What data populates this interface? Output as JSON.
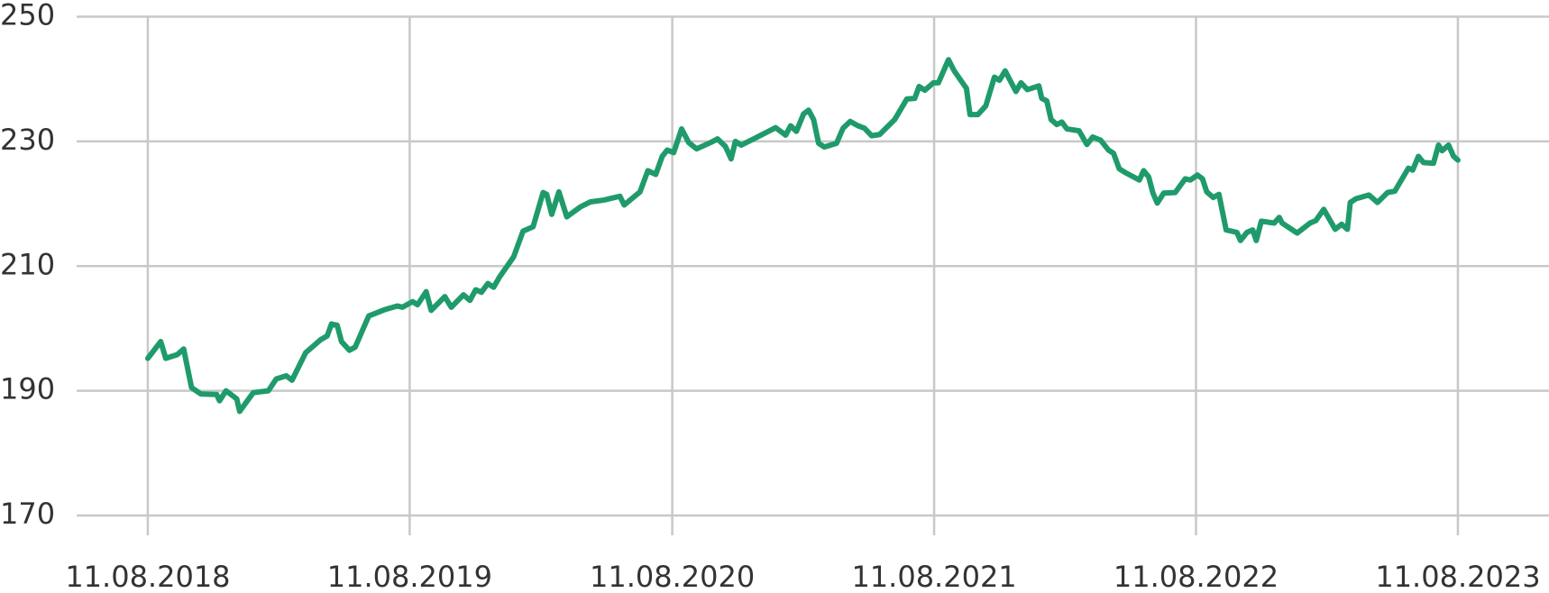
{
  "chart_data": {
    "type": "line",
    "x": [
      "11.08.2018",
      "29.08.2018",
      "05.09.2018",
      "21.09.2018",
      "30.09.2018",
      "11.10.2018",
      "24.10.2018",
      "15.11.2018",
      "19.11.2018",
      "28.11.2018",
      "13.12.2018",
      "17.12.2018",
      "05.01.2019",
      "26.01.2019",
      "06.02.2019",
      "20.02.2019",
      "28.02.2019",
      "19.03.2019",
      "09.04.2019",
      "18.04.2019",
      "24.04.2019",
      "02.05.2019",
      "08.05.2019",
      "19.05.2019",
      "27.05.2019",
      "15.06.2019",
      "07.07.2019",
      "25.07.2019",
      "01.08.2019",
      "15.08.2019",
      "22.08.2019",
      "03.09.2019",
      "10.09.2019",
      "29.09.2019",
      "08.10.2019",
      "25.10.2019",
      "03.11.2019",
      "11.11.2019",
      "19.11.2019",
      "28.11.2019",
      "06.12.2019",
      "14.12.2019",
      "03.01.2020",
      "16.01.2020",
      "30.01.2020",
      "13.02.2020",
      "18.02.2020",
      "25.02.2020",
      "06.03.2020",
      "17.03.2020",
      "05.04.2020",
      "19.04.2020",
      "08.05.2020",
      "30.05.2020",
      "05.06.2020",
      "27.06.2020",
      "08.07.2020",
      "19.07.2020",
      "28.07.2020",
      "04.08.2020",
      "13.08.2020",
      "24.08.2020",
      "03.09.2020",
      "14.09.2020",
      "05.10.2020",
      "13.10.2020",
      "24.10.2020",
      "01.11.2020",
      "07.11.2020",
      "15.11.2020",
      "06.12.2020",
      "02.01.2021",
      "16.01.2021",
      "23.01.2021",
      "31.01.2021",
      "10.02.2021",
      "17.02.2021",
      "24.02.2021",
      "03.03.2021",
      "11.03.2021",
      "28.03.2021",
      "06.04.2021",
      "16.04.2021",
      "27.04.2021",
      "06.05.2021",
      "16.05.2021",
      "27.05.2021",
      "17.06.2021",
      "04.07.2021",
      "15.07.2021",
      "21.07.2021",
      "29.07.2021",
      "10.08.2021",
      "17.08.2021",
      "31.08.2021",
      "08.09.2021",
      "25.09.2021",
      "30.09.2021",
      "11.10.2021",
      "22.10.2021",
      "03.11.2021",
      "10.11.2021",
      "18.11.2021",
      "03.12.2021",
      "10.12.2021",
      "19.12.2021",
      "04.01.2022",
      "08.01.2022",
      "15.01.2022",
      "21.01.2022",
      "29.01.2022",
      "05.02.2022",
      "12.02.2022",
      "01.03.2022",
      "12.03.2022",
      "20.03.2022",
      "31.03.2022",
      "11.04.2022",
      "18.04.2022",
      "26.04.2022",
      "06.05.2022",
      "24.05.2022",
      "30.05.2022",
      "06.06.2022",
      "12.06.2022",
      "18.06.2022",
      "27.06.2022",
      "13.07.2022",
      "27.07.2022",
      "03.08.2022",
      "13.08.2022",
      "20.08.2022",
      "26.08.2022",
      "04.09.2022",
      "12.09.2022",
      "22.09.2022",
      "07.10.2022",
      "12.10.2022",
      "21.10.2022",
      "29.10.2022",
      "03.11.2022",
      "10.11.2022",
      "28.11.2022",
      "05.12.2022",
      "09.12.2022",
      "30.12.2022",
      "17.01.2023",
      "25.01.2023",
      "05.02.2023",
      "21.02.2023",
      "02.03.2023",
      "10.03.2023",
      "14.03.2023",
      "22.03.2023",
      "09.04.2023",
      "21.04.2023",
      "05.05.2023",
      "15.05.2023",
      "03.06.2023",
      "09.06.2023",
      "17.06.2023",
      "24.06.2023",
      "08.07.2023",
      "15.07.2023",
      "20.07.2023",
      "29.07.2023",
      "05.08.2023",
      "11.08.2023"
    ],
    "series": [
      {
        "color": "#1f9b6b",
        "values": [
          195.2,
          197.9,
          195.2,
          195.8,
          196.7,
          190.5,
          189.5,
          189.4,
          188.4,
          190.0,
          188.7,
          186.7,
          189.7,
          190.0,
          191.9,
          192.4,
          191.7,
          196.1,
          198.2,
          198.8,
          200.7,
          200.5,
          197.9,
          196.5,
          197.0,
          202.0,
          203.0,
          203.6,
          203.4,
          204.3,
          203.8,
          205.9,
          202.9,
          205.1,
          203.4,
          205.4,
          204.5,
          206.2,
          205.8,
          207.2,
          206.6,
          208.2,
          211.5,
          215.6,
          216.3,
          221.8,
          221.5,
          218.3,
          221.9,
          217.9,
          219.5,
          220.3,
          220.6,
          221.2,
          219.8,
          221.9,
          225.3,
          224.7,
          227.6,
          228.6,
          228.2,
          232.0,
          229.8,
          228.8,
          229.9,
          230.4,
          229.2,
          227.2,
          230.0,
          229.4,
          230.6,
          232.2,
          231.0,
          232.5,
          231.6,
          234.4,
          235.0,
          233.5,
          229.7,
          229.1,
          229.7,
          232.1,
          233.2,
          232.5,
          232.1,
          230.9,
          231.1,
          233.5,
          236.8,
          236.9,
          238.8,
          238.2,
          239.4,
          239.4,
          243.1,
          241.3,
          238.5,
          234.3,
          234.3,
          235.7,
          240.3,
          239.8,
          241.3,
          238.0,
          239.4,
          238.3,
          238.9,
          236.9,
          236.5,
          233.5,
          232.7,
          233.1,
          232.0,
          231.7,
          229.5,
          230.7,
          230.2,
          228.6,
          228.1,
          225.6,
          224.9,
          223.8,
          225.3,
          224.3,
          221.7,
          220.1,
          221.7,
          221.8,
          224.0,
          223.8,
          224.6,
          224.0,
          221.9,
          221.0,
          221.5,
          215.8,
          215.4,
          214.1,
          215.4,
          215.8,
          214.1,
          217.2,
          216.9,
          217.8,
          216.9,
          215.3,
          216.9,
          217.3,
          219.1,
          215.9,
          216.7,
          215.9,
          220.2,
          220.8,
          221.4,
          220.2,
          221.8,
          222.0,
          225.7,
          225.4,
          227.6,
          226.6,
          226.5,
          229.4,
          228.5,
          229.4,
          227.6,
          227.0
        ]
      }
    ],
    "xlim": [
      "17.01.2018",
      "16.12.2023"
    ],
    "xticks": [
      "11.08.2018",
      "11.08.2019",
      "11.08.2020",
      "11.08.2021",
      "11.08.2022",
      "11.08.2023"
    ],
    "ylim": [
      170,
      250
    ],
    "yticks": [
      170,
      190,
      210,
      230,
      250
    ],
    "grid": true
  }
}
